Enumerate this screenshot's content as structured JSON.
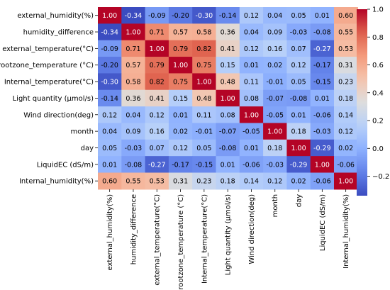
{
  "chart_data": {
    "type": "heatmap",
    "title": "",
    "labels": [
      "external_humidity(%)",
      "humidity_difference",
      "external_temperature(°C)",
      "rootzone_temperature (°C)",
      "Internal_temperature(°C)",
      "Light quantity   (μmol/s)",
      "Wind direction(deg)",
      "month",
      "day",
      "LiquidEC (dS/m)",
      "Internal_humidity(%)"
    ],
    "matrix": [
      [
        1.0,
        -0.34,
        -0.09,
        -0.2,
        -0.3,
        -0.14,
        0.12,
        0.04,
        0.05,
        0.01,
        0.6
      ],
      [
        -0.34,
        1.0,
        0.71,
        0.57,
        0.58,
        0.36,
        0.04,
        0.09,
        -0.03,
        -0.08,
        0.55
      ],
      [
        -0.09,
        0.71,
        1.0,
        0.79,
        0.82,
        0.41,
        0.12,
        0.16,
        0.07,
        -0.27,
        0.53
      ],
      [
        -0.2,
        0.57,
        0.79,
        1.0,
        0.75,
        0.15,
        0.01,
        0.02,
        0.12,
        -0.17,
        0.31
      ],
      [
        -0.3,
        0.58,
        0.82,
        0.75,
        1.0,
        0.48,
        0.11,
        -0.01,
        0.05,
        -0.15,
        0.23
      ],
      [
        -0.14,
        0.36,
        0.41,
        0.15,
        0.48,
        1.0,
        0.08,
        -0.07,
        -0.08,
        0.01,
        0.18
      ],
      [
        0.12,
        0.04,
        0.12,
        0.01,
        0.11,
        0.08,
        1.0,
        -0.05,
        0.01,
        -0.06,
        0.14
      ],
      [
        0.04,
        0.09,
        0.16,
        0.02,
        -0.01,
        -0.07,
        -0.05,
        1.0,
        0.18,
        -0.03,
        0.12
      ],
      [
        0.05,
        -0.03,
        0.07,
        0.12,
        0.05,
        -0.08,
        0.01,
        0.18,
        1.0,
        -0.29,
        0.02
      ],
      [
        0.01,
        -0.08,
        -0.27,
        -0.17,
        -0.15,
        0.01,
        -0.06,
        -0.03,
        -0.29,
        1.0,
        -0.06
      ],
      [
        0.6,
        0.55,
        0.53,
        0.31,
        0.23,
        0.18,
        0.14,
        0.12,
        0.02,
        -0.06,
        1.0
      ]
    ],
    "value_format": "2 decimals",
    "colormap": "coolwarm",
    "color_range": [
      -0.34,
      1.0
    ],
    "colorbar": {
      "ticks": [
        1.0,
        0.8,
        0.6,
        0.4,
        0.2,
        0.0,
        -0.2
      ],
      "tick_labels": [
        "1.0",
        "0.8",
        "0.6",
        "0.4",
        "0.2",
        "0.0",
        "−0.2"
      ]
    },
    "grid": false
  }
}
